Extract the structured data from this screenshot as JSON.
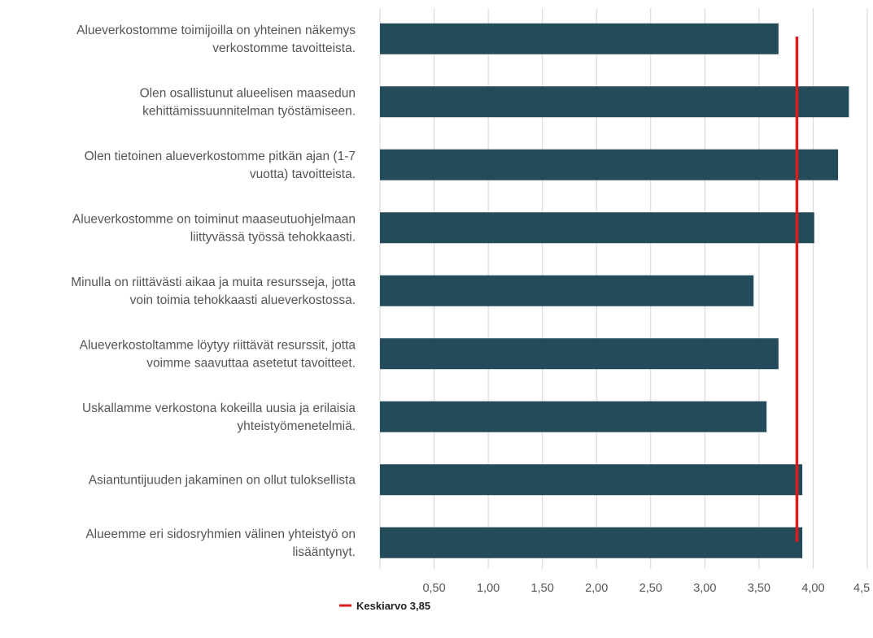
{
  "chart_data": {
    "type": "bar",
    "orientation": "horizontal",
    "categories": [
      [
        "Alueverkostomme toimijoilla on yhteinen näkemys",
        "verkostomme tavoitteista."
      ],
      [
        "Olen osallistunut alueelisen maasedun",
        "kehittämissuunnitelman työstämiseen."
      ],
      [
        "Olen tietoinen alueverkostomme pitkän ajan (1-7",
        "vuotta) tavoitteista."
      ],
      [
        "Alueverkostomme on toiminut maaseutuohjelmaan",
        "liittyvässä työssä tehokkaasti."
      ],
      [
        "Minulla on riittävästi aikaa ja muita resursseja, jotta",
        "voin toimia tehokkaasti alueverkostossa."
      ],
      [
        "Alueverkostoltamme löytyy riittävät resurssit, jotta",
        "voimme saavuttaa asetetut tavoitteet."
      ],
      [
        "Uskallamme verkostona kokeilla uusia ja erilaisia",
        "yhteistyömenetelmiä."
      ],
      [
        "Asiantuntijuuden jakaminen on ollut tuloksellista"
      ],
      [
        "Alueemme eri sidosryhmien välinen yhteistyö on",
        "lisääntynyt."
      ]
    ],
    "values": [
      3.68,
      4.33,
      4.23,
      4.01,
      3.45,
      3.68,
      3.57,
      3.9,
      3.9
    ],
    "bar_color": "#234b5a",
    "xlim": [
      0,
      4.5
    ],
    "xticks": [
      "0,50",
      "1,00",
      "1,50",
      "2,00",
      "2,50",
      "3,00",
      "3,50",
      "4,00",
      "4,5"
    ],
    "xtick_values": [
      0.5,
      1.0,
      1.5,
      2.0,
      2.5,
      3.0,
      3.5,
      4.0,
      4.5
    ],
    "mean": {
      "value": 3.85,
      "label": "Keskiarvo 3,85",
      "color": "#e01b1b"
    },
    "grid": true,
    "legend_position": "bottom"
  }
}
